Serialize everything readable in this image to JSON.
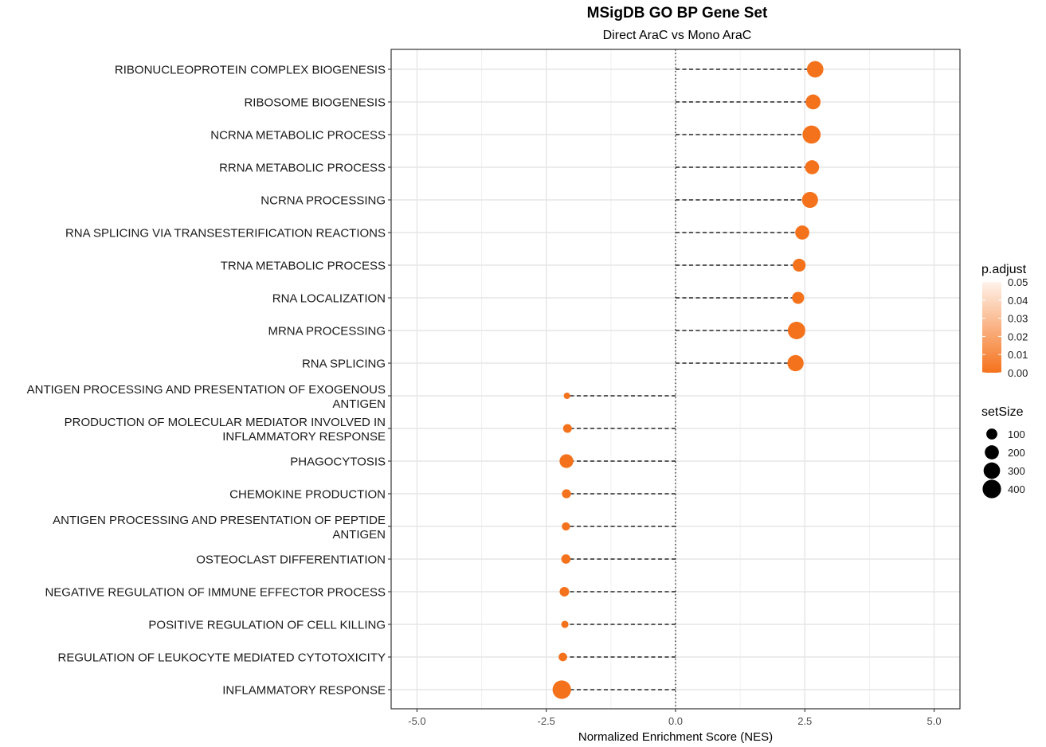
{
  "chart_data": {
    "type": "scatter",
    "title": "MSigDB GO BP Gene Set",
    "subtitle": "Direct AraC vs Mono AraC",
    "xlabel": "Normalized Enrichment Score (NES)",
    "xlim": [
      -5.5,
      5.5
    ],
    "xticks": [
      -5.0,
      -2.5,
      0.0,
      2.5,
      5.0
    ],
    "xtick_labels": [
      "-5.0",
      "-2.5",
      "0.0",
      "2.5",
      "5.0"
    ],
    "grid": true,
    "reference_line_x": 0,
    "categories": [
      "RIBONUCLEOPROTEIN COMPLEX BIOGENESIS",
      "RIBOSOME BIOGENESIS",
      "NCRNA METABOLIC PROCESS",
      "RRNA METABOLIC PROCESS",
      "NCRNA PROCESSING",
      "RNA SPLICING VIA TRANSESTERIFICATION REACTIONS",
      "TRNA METABOLIC PROCESS",
      "RNA LOCALIZATION",
      "MRNA PROCESSING",
      "RNA SPLICING",
      "ANTIGEN PROCESSING AND PRESENTATION OF EXOGENOUS ANTIGEN",
      "PRODUCTION OF MOLECULAR MEDIATOR INVOLVED IN INFLAMMATORY RESPONSE",
      "PHAGOCYTOSIS",
      "CHEMOKINE PRODUCTION",
      "ANTIGEN PROCESSING AND PRESENTATION OF PEPTIDE ANTIGEN",
      "OSTEOCLAST DIFFERENTIATION",
      "NEGATIVE REGULATION OF IMMUNE EFFECTOR PROCESS",
      "POSITIVE REGULATION OF CELL KILLING",
      "REGULATION OF LEUKOCYTE MEDIATED CYTOTOXICITY",
      "INFLAMMATORY RESPONSE"
    ],
    "category_lines": [
      [
        "RIBONUCLEOPROTEIN COMPLEX BIOGENESIS"
      ],
      [
        "RIBOSOME BIOGENESIS"
      ],
      [
        "NCRNA METABOLIC PROCESS"
      ],
      [
        "RRNA METABOLIC PROCESS"
      ],
      [
        "NCRNA PROCESSING"
      ],
      [
        "RNA SPLICING VIA TRANSESTERIFICATION REACTIONS"
      ],
      [
        "TRNA METABOLIC PROCESS"
      ],
      [
        "RNA LOCALIZATION"
      ],
      [
        "MRNA PROCESSING"
      ],
      [
        "RNA SPLICING"
      ],
      [
        "ANTIGEN PROCESSING AND PRESENTATION OF EXOGENOUS",
        "ANTIGEN"
      ],
      [
        "PRODUCTION OF MOLECULAR MEDIATOR INVOLVED IN",
        "INFLAMMATORY RESPONSE"
      ],
      [
        "PHAGOCYTOSIS"
      ],
      [
        "CHEMOKINE PRODUCTION"
      ],
      [
        "ANTIGEN PROCESSING AND PRESENTATION OF PEPTIDE",
        "ANTIGEN"
      ],
      [
        "OSTEOCLAST DIFFERENTIATION"
      ],
      [
        "NEGATIVE REGULATION OF IMMUNE EFFECTOR PROCESS"
      ],
      [
        "POSITIVE REGULATION OF CELL KILLING"
      ],
      [
        "REGULATION OF LEUKOCYTE MEDIATED CYTOTOXICITY"
      ],
      [
        "INFLAMMATORY RESPONSE"
      ]
    ],
    "nes": [
      2.7,
      2.66,
      2.63,
      2.64,
      2.6,
      2.45,
      2.39,
      2.37,
      2.34,
      2.32,
      -2.1,
      -2.09,
      -2.11,
      -2.11,
      -2.12,
      -2.12,
      -2.15,
      -2.14,
      -2.18,
      -2.2
    ],
    "set_size": [
      300,
      230,
      380,
      200,
      280,
      200,
      160,
      130,
      350,
      290,
      15,
      50,
      190,
      55,
      40,
      60,
      65,
      25,
      45,
      400
    ],
    "p_adjust": [
      0,
      0,
      0,
      0,
      0,
      0,
      0,
      0,
      0,
      0,
      0,
      0,
      0,
      0,
      0,
      0,
      0,
      0,
      0,
      0
    ],
    "point_color": "#F5721C",
    "color_legend": {
      "title": "p.adjust",
      "ticks": [
        "0.05",
        "0.04",
        "0.03",
        "0.02",
        "0.01",
        "0.00"
      ],
      "color_low": "#F5721C",
      "color_high": "#FEF2EA"
    },
    "size_legend": {
      "title": "setSize",
      "values": [
        100,
        200,
        300,
        400
      ],
      "labels": [
        "100",
        "200",
        "300",
        "400"
      ]
    }
  }
}
